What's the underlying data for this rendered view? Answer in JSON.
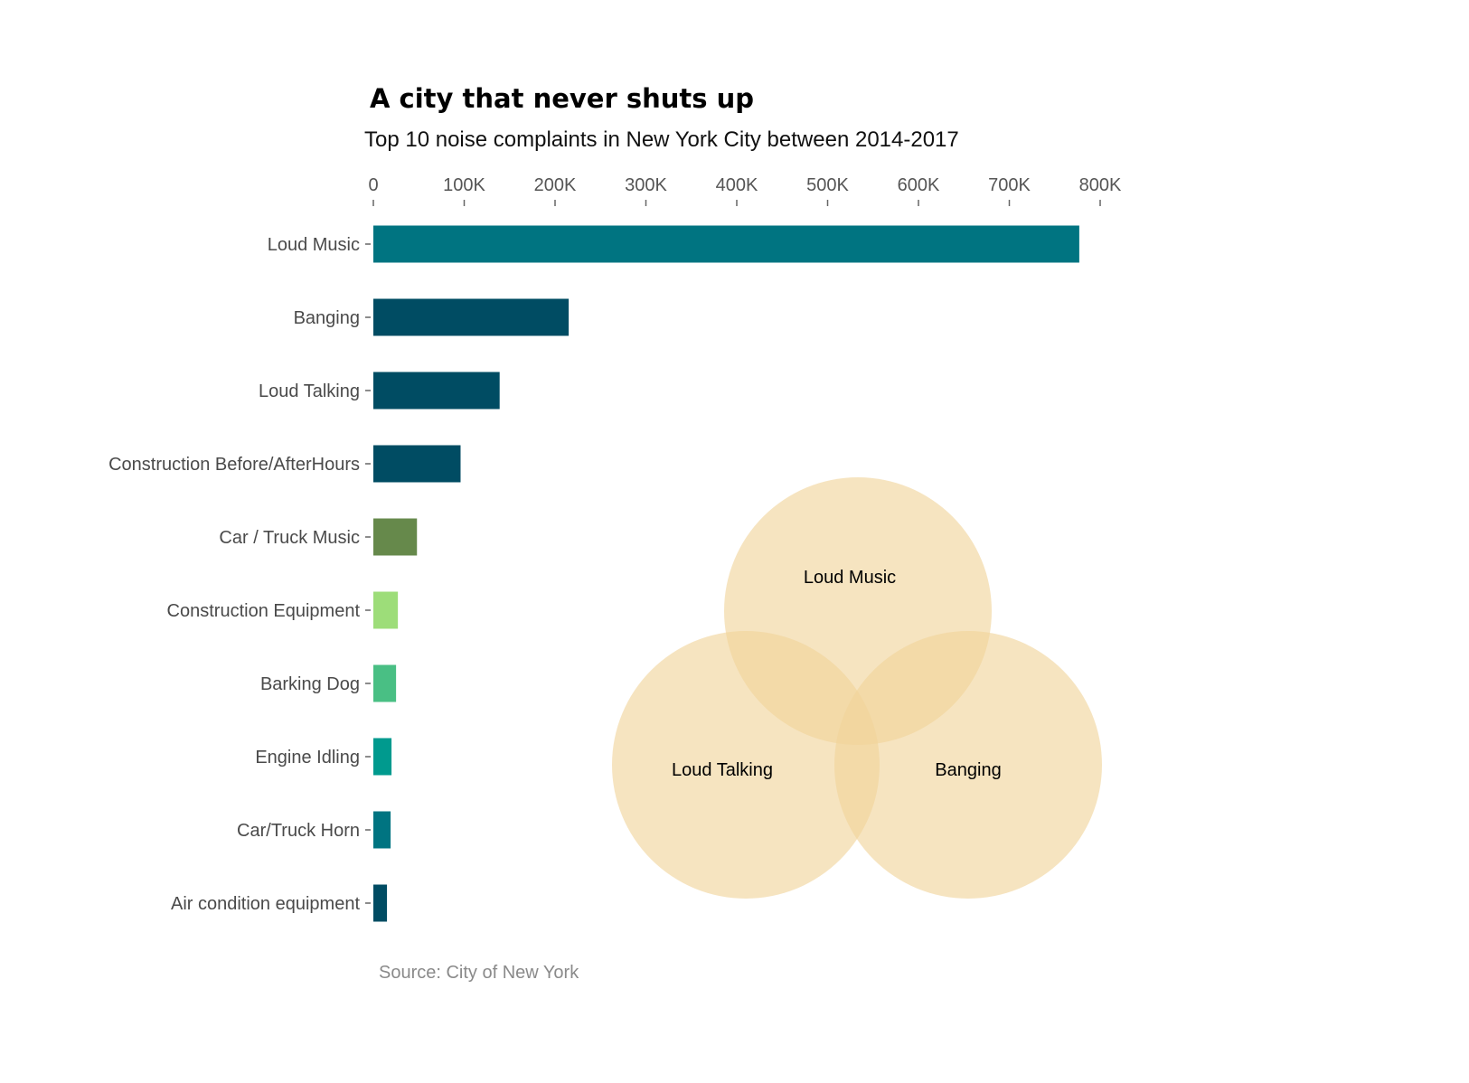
{
  "title": "A city that never shuts up",
  "subtitle": "Top 10 noise complaints in New York City between 2014-2017",
  "source": "Source: City of New York",
  "colors": {
    "venn_circle": "#f0d39a",
    "tick": "#666666"
  },
  "chart_data": [
    {
      "type": "bar",
      "orientation": "horizontal",
      "x_axis_position": "top",
      "grid": false,
      "xlim": [
        0,
        800000
      ],
      "x_ticks": [
        0,
        100000,
        200000,
        300000,
        400000,
        500000,
        600000,
        700000,
        800000
      ],
      "x_tick_labels": [
        "0",
        "100K",
        "200K",
        "300K",
        "400K",
        "500K",
        "600K",
        "700K",
        "800K"
      ],
      "categories": [
        "Loud Music",
        "Banging",
        "Loud Talking",
        "Construction Before/AfterHours",
        "Car / Truck Music",
        "Construction Equipment",
        "Barking Dog",
        "Engine Idling",
        "Car/Truck Horn",
        "Air condition equipment"
      ],
      "values": [
        777000,
        215000,
        139000,
        96000,
        48000,
        27000,
        25000,
        20000,
        19000,
        15000
      ],
      "bar_colors": [
        "#007481",
        "#004c63",
        "#004c63",
        "#004c63",
        "#66894b",
        "#9ddd79",
        "#49bf84",
        "#009a8e",
        "#007481",
        "#004c63"
      ]
    },
    {
      "type": "venn",
      "sets": [
        "Loud Music",
        "Loud Talking",
        "Banging"
      ]
    }
  ]
}
